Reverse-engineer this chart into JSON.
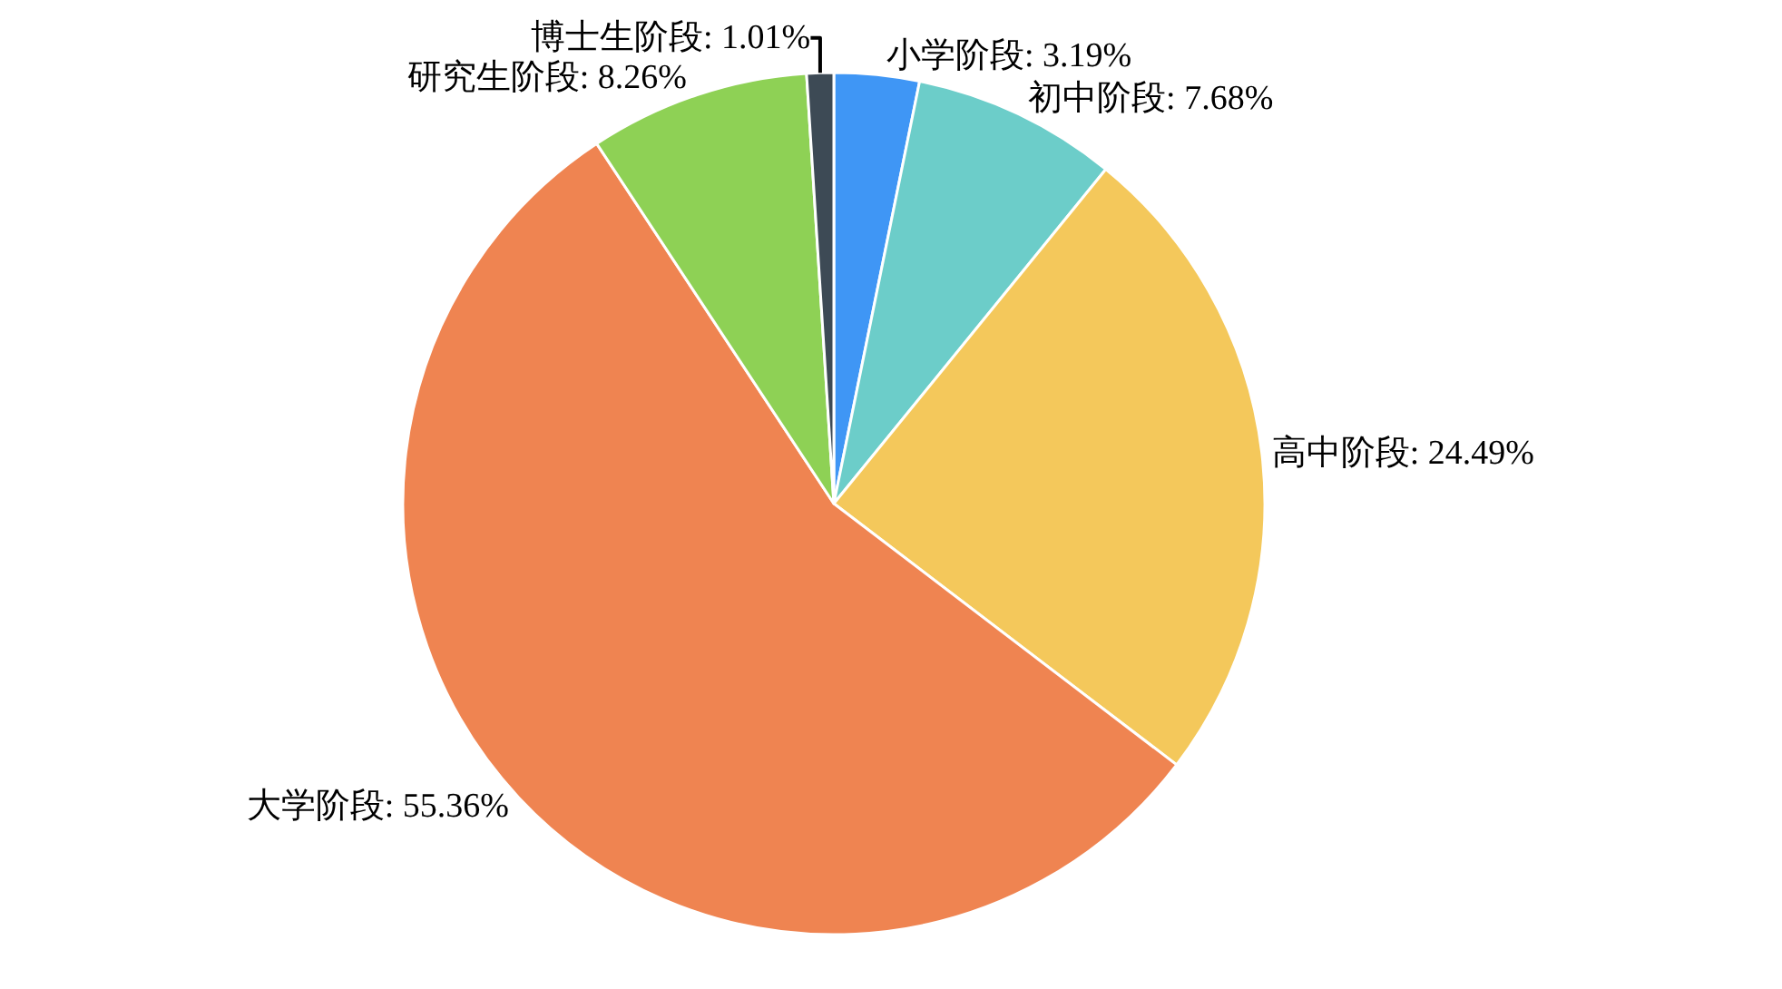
{
  "chart_data": {
    "type": "pie",
    "categories": [
      "小学阶段",
      "初中阶段",
      "高中阶段",
      "大学阶段",
      "研究生阶段",
      "博士生阶段"
    ],
    "values": [
      3.19,
      7.68,
      24.49,
      55.36,
      8.26,
      1.01
    ],
    "value_labels": [
      "3.19%",
      "7.68%",
      "24.49%",
      "55.36%",
      "8.26%",
      "1.01%"
    ],
    "colors": [
      "#3f96f5",
      "#6ccdc9",
      "#f4c85b",
      "#ef8451",
      "#8ed155",
      "#3d4a55"
    ],
    "legend": false
  }
}
